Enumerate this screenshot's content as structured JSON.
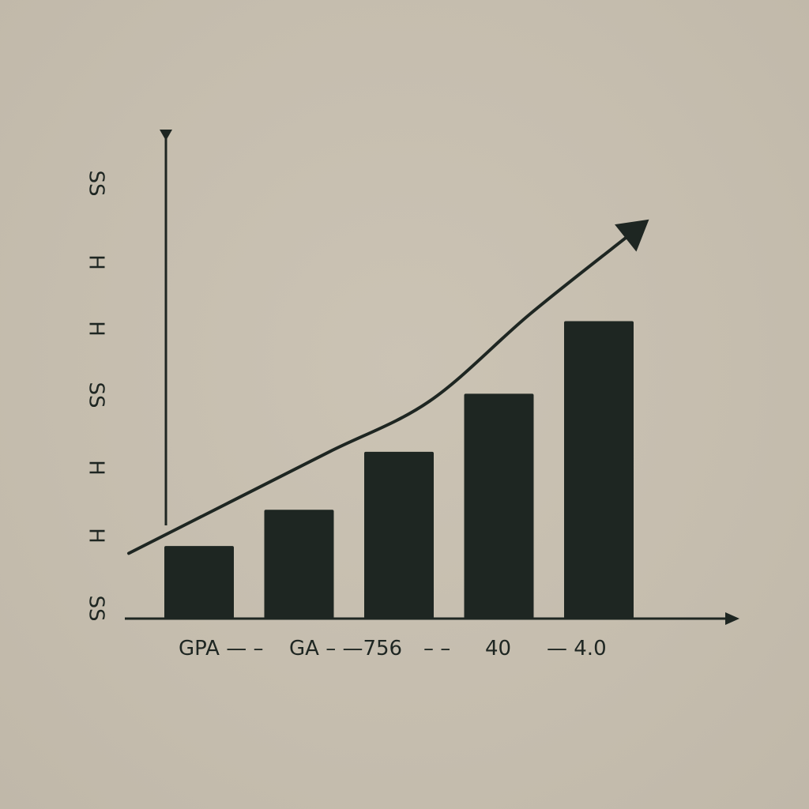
{
  "colors": {
    "background": "#c7bfb0",
    "ink": "#1e2622"
  },
  "chart_data": {
    "type": "bar",
    "title": "",
    "xlabel": "",
    "ylabel": "",
    "categories": [
      "GPA",
      "GA",
      "756",
      "40",
      "4.0"
    ],
    "x_tick_labels": [
      "GPA — –",
      "GA – —756",
      "– –",
      "40",
      "— 4.0"
    ],
    "y_tick_labels": [
      "SS",
      "H",
      "H",
      "SS",
      "H",
      "H",
      "SS"
    ],
    "series": [
      {
        "values": [
          1.0,
          1.5,
          2.3,
          3.1,
          4.1
        ]
      }
    ],
    "trend_line": {
      "style": "curved arrow rising to the upper right",
      "values": [
        0.9,
        1.6,
        2.3,
        3.0,
        4.2,
        5.3
      ]
    },
    "ylim": [
      0,
      6.6
    ],
    "grid": false,
    "legend": "none"
  }
}
